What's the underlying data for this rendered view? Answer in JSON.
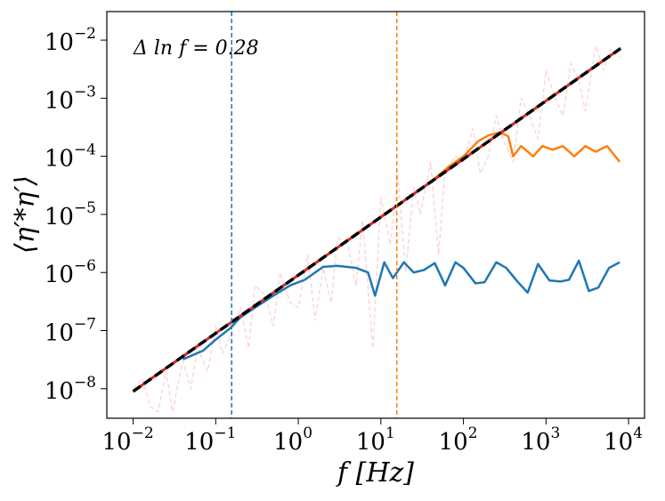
{
  "chart_data": {
    "type": "line",
    "annotation": "Δ ln f = 0.28",
    "xlabel": "f [Hz]",
    "ylabel": "⟨η′*η′⟩",
    "xscale": "log",
    "yscale": "log",
    "xlim": [
      0.0048,
      15600
    ],
    "ylim": [
      3.1e-09,
      0.031
    ],
    "xticks": [
      {
        "value": 0.01,
        "label": "10",
        "exponent": "−2"
      },
      {
        "value": 0.1,
        "label": "10",
        "exponent": "−1"
      },
      {
        "value": 1,
        "label": "10",
        "exponent": "0"
      },
      {
        "value": 10,
        "label": "10",
        "exponent": "1"
      },
      {
        "value": 100,
        "label": "10",
        "exponent": "2"
      },
      {
        "value": 1000,
        "label": "10",
        "exponent": "3"
      },
      {
        "value": 10000,
        "label": "10",
        "exponent": "4"
      }
    ],
    "yticks": [
      {
        "value": 1e-08,
        "label": "10",
        "exponent": "−8"
      },
      {
        "value": 1e-07,
        "label": "10",
        "exponent": "−7"
      },
      {
        "value": 1e-06,
        "label": "10",
        "exponent": "−6"
      },
      {
        "value": 1e-05,
        "label": "10",
        "exponent": "−5"
      },
      {
        "value": 0.0001,
        "label": "10",
        "exponent": "−4"
      },
      {
        "value": 0.001,
        "label": "10",
        "exponent": "−3"
      },
      {
        "value": 0.01,
        "label": "10",
        "exponent": "−2"
      }
    ],
    "vlines": [
      {
        "x": 0.156,
        "color": "#1f77b4"
      },
      {
        "x": 15.6,
        "color": "#ff7f0e"
      }
    ],
    "series": [
      {
        "color": "#f5b5b5",
        "dash": true,
        "width": 1.3,
        "opacity": 0.6,
        "x": [
          0.01,
          0.013,
          0.016,
          0.02,
          0.025,
          0.03,
          0.04,
          0.05,
          0.06,
          0.08,
          0.1,
          0.12,
          0.15,
          0.2,
          0.25,
          0.3,
          0.4,
          0.5,
          0.6,
          0.8,
          1,
          1.3,
          1.6,
          2,
          2.5,
          3,
          4,
          5,
          6,
          8,
          10,
          13,
          16,
          20,
          25,
          30,
          40,
          50,
          60,
          80,
          100,
          130,
          160,
          200,
          250,
          300,
          400,
          500,
          600,
          800,
          1000,
          1300,
          1600,
          2000,
          2500,
          3000,
          4000,
          5000,
          6000,
          8000
        ],
        "y": [
          1e-08,
          1.5e-08,
          5e-09,
          4e-09,
          2e-08,
          4e-09,
          3e-08,
          1e-08,
          5e-08,
          2e-08,
          1.2e-07,
          4e-08,
          8e-08,
          2.5e-07,
          5e-08,
          6e-07,
          4e-07,
          1.2e-07,
          1e-06,
          3e-07,
          2.5e-07,
          2e-06,
          1.5e-07,
          1.2e-06,
          3e-07,
          4e-06,
          3e-06,
          6e-07,
          8e-06,
          5e-08,
          2e-05,
          3e-06,
          5e-05,
          1e-06,
          3e-05,
          1e-05,
          8e-05,
          2e-06,
          6e-05,
          0.0001,
          8e-05,
          0.0003,
          5e-05,
          0.0001,
          0.0005,
          0.0002,
          8e-05,
          0.001,
          0.0006,
          0.0002,
          0.003,
          0.001,
          0.0005,
          0.004,
          0.002,
          0.0006,
          0.008,
          0.003,
          0.007,
          0.005
        ]
      },
      {
        "color": "#1f77b4",
        "width": 2.5,
        "x": [
          0.04,
          0.07,
          0.1,
          0.15,
          0.2,
          0.3,
          0.5,
          0.8,
          1.2,
          2,
          3,
          5,
          7,
          8.5,
          11,
          14,
          19,
          25,
          33,
          45,
          60,
          80,
          100,
          140,
          180,
          250,
          330,
          450,
          600,
          800,
          1100,
          1500,
          1900,
          2500,
          3300,
          4300,
          5800,
          7800
        ],
        "y": [
          3.2e-08,
          4.5e-08,
          7e-08,
          1.1e-07,
          1.7e-07,
          2.5e-07,
          4e-07,
          6e-07,
          7.5e-07,
          1.25e-06,
          1.3e-06,
          1.2e-06,
          1e-06,
          4e-07,
          1.5e-06,
          8e-07,
          1.5e-06,
          1e-06,
          1.1e-06,
          1.45e-06,
          6e-07,
          1.5e-06,
          1.2e-06,
          6.5e-07,
          6.8e-07,
          1.5e-06,
          1.2e-06,
          7e-07,
          4.5e-07,
          1.4e-06,
          7.3e-07,
          7e-07,
          7.5e-07,
          1.6e-06,
          4.8e-07,
          5.5e-07,
          1.2e-06,
          1.5e-06
        ]
      },
      {
        "color": "#ff7f0e",
        "width": 2.5,
        "x": [
          10,
          20,
          40,
          70,
          100,
          150,
          200,
          280,
          350,
          400,
          500,
          700,
          900,
          1200,
          1600,
          2200,
          3000,
          4000,
          5500,
          7800
        ],
        "y": [
          9e-06,
          1.8e-05,
          3.6e-05,
          7e-05,
          0.0001,
          0.00018,
          0.00023,
          0.00026,
          0.00022,
          0.0001,
          0.00015,
          0.0001,
          0.00015,
          0.00013,
          0.00015,
          0.0001,
          0.00015,
          0.00012,
          0.00015,
          8e-05
        ]
      },
      {
        "color": "#d62728",
        "width": 3,
        "x": [
          0.01,
          8000
        ],
        "y": [
          9e-09,
          0.0072
        ]
      },
      {
        "color": "#000000",
        "dash": true,
        "width": 3.5,
        "x": [
          0.01,
          8000
        ],
        "y": [
          9e-09,
          0.0072
        ]
      }
    ]
  }
}
